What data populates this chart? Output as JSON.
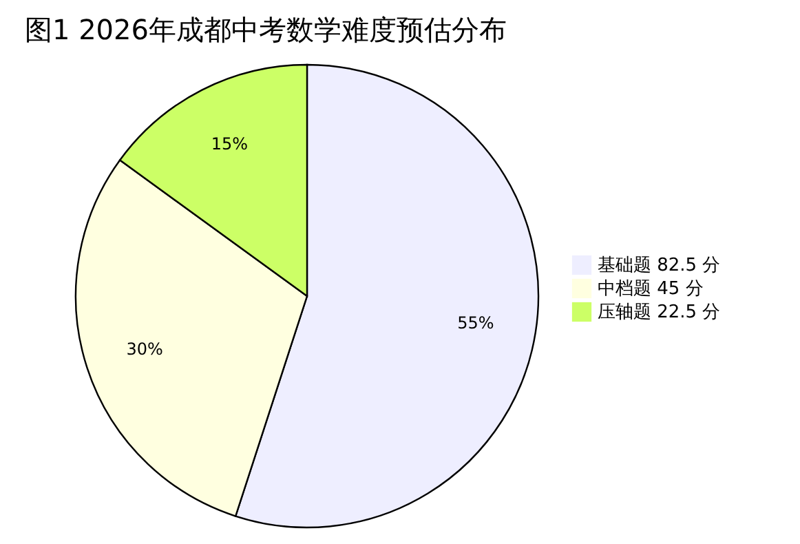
{
  "chart_data": {
    "type": "pie",
    "title": "图1 2026年成都中考数学难度预估分布",
    "categories": [
      "基础题 82.5 分",
      "中档题 45 分",
      "压轴题 22.5 分"
    ],
    "values": [
      55,
      30,
      15
    ],
    "colors": [
      "#eeeeff",
      "#ffffe0",
      "#ccff66"
    ],
    "value_labels": [
      "55%",
      "30%",
      "15%"
    ],
    "legend": "right"
  }
}
